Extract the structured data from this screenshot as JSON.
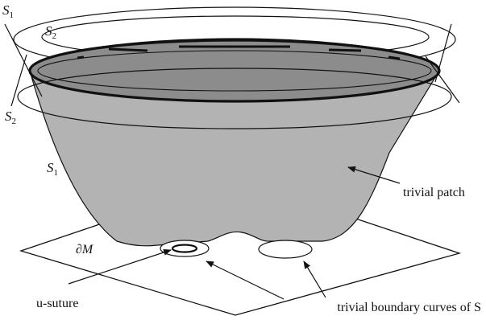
{
  "labels": {
    "s1": "S",
    "s2": "S",
    "sub1": "1",
    "sub2": "2",
    "boundary_m": "∂M",
    "u_suture": "u-suture",
    "trivial_patch": "trivial patch",
    "trivial_boundary": "trivial boundary curves of S"
  },
  "colors": {
    "surface_fill": "#b3b3b3",
    "inner_ellipse_fill": "#8c8c8c",
    "line": "#111111",
    "background": "#ffffff"
  }
}
